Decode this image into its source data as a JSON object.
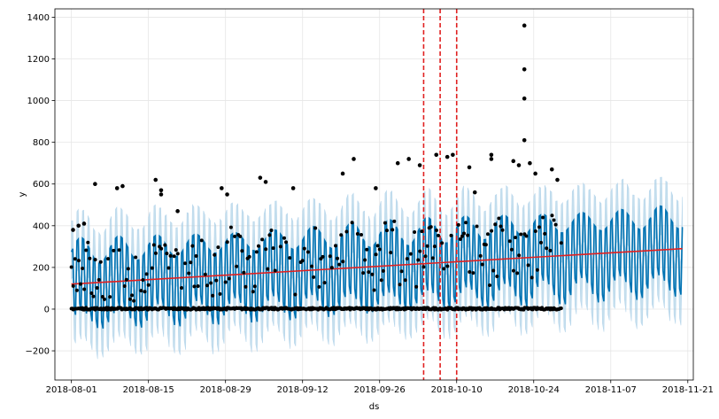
{
  "chart_data": {
    "type": "line",
    "title": "",
    "xlabel": "ds",
    "ylabel": "y",
    "x_axis": {
      "type": "date",
      "range": [
        "2018-07-29",
        "2018-11-22"
      ],
      "ticks": [
        "2018-08-01",
        "2018-08-15",
        "2018-08-29",
        "2018-09-12",
        "2018-09-26",
        "2018-10-10",
        "2018-10-24",
        "2018-11-07",
        "2018-11-21"
      ]
    },
    "y_axis": {
      "range": [
        -340,
        1440
      ],
      "ticks": [
        -200,
        0,
        200,
        400,
        600,
        800,
        1000,
        1200,
        1400
      ]
    },
    "grid": true,
    "forecast_start": "2018-08-01",
    "forecast_end": "2018-11-20",
    "history_end": "2018-10-29",
    "trend": {
      "name": "trend",
      "color": "#e02020",
      "points": [
        {
          "x": "2018-08-01",
          "y": 120
        },
        {
          "x": "2018-11-20",
          "y": 290
        }
      ]
    },
    "changepoints": {
      "color": "#e02020",
      "style": "dashed",
      "dates": [
        "2018-10-04",
        "2018-10-07",
        "2018-10-10"
      ]
    },
    "forecast_band": {
      "line_color": "#0072b2",
      "band_color": "#9ecae1",
      "description_values": "yhat oscillates daily between about -120 and 320 in early August rising to about 50 and 480 by late November; uncertainty band roughly 140 wider"
    },
    "observations": {
      "color": "#000000",
      "outliers": [
        {
          "x": "2018-08-01",
          "y": 380
        },
        {
          "x": "2018-08-02",
          "y": 400
        },
        {
          "x": "2018-08-03",
          "y": 410
        },
        {
          "x": "2018-08-05",
          "y": 600
        },
        {
          "x": "2018-08-09",
          "y": 580
        },
        {
          "x": "2018-08-10",
          "y": 590
        },
        {
          "x": "2018-08-16",
          "y": 620
        },
        {
          "x": "2018-08-17",
          "y": 570
        },
        {
          "x": "2018-08-17",
          "y": 550
        },
        {
          "x": "2018-08-20",
          "y": 470
        },
        {
          "x": "2018-08-28",
          "y": 580
        },
        {
          "x": "2018-08-29",
          "y": 550
        },
        {
          "x": "2018-09-04",
          "y": 630
        },
        {
          "x": "2018-09-05",
          "y": 610
        },
        {
          "x": "2018-09-10",
          "y": 580
        },
        {
          "x": "2018-09-19",
          "y": 650
        },
        {
          "x": "2018-09-21",
          "y": 720
        },
        {
          "x": "2018-09-25",
          "y": 580
        },
        {
          "x": "2018-09-29",
          "y": 700
        },
        {
          "x": "2018-10-01",
          "y": 720
        },
        {
          "x": "2018-10-03",
          "y": 690
        },
        {
          "x": "2018-10-06",
          "y": 740
        },
        {
          "x": "2018-10-08",
          "y": 730
        },
        {
          "x": "2018-10-09",
          "y": 740
        },
        {
          "x": "2018-10-12",
          "y": 680
        },
        {
          "x": "2018-10-13",
          "y": 560
        },
        {
          "x": "2018-10-16",
          "y": 740
        },
        {
          "x": "2018-10-16",
          "y": 720
        },
        {
          "x": "2018-10-20",
          "y": 710
        },
        {
          "x": "2018-10-21",
          "y": 690
        },
        {
          "x": "2018-10-22",
          "y": 1360
        },
        {
          "x": "2018-10-22",
          "y": 1150
        },
        {
          "x": "2018-10-22",
          "y": 1010
        },
        {
          "x": "2018-10-22",
          "y": 810
        },
        {
          "x": "2018-10-23",
          "y": 700
        },
        {
          "x": "2018-10-24",
          "y": 650
        },
        {
          "x": "2018-10-27",
          "y": 670
        },
        {
          "x": "2018-10-28",
          "y": 620
        }
      ]
    }
  }
}
